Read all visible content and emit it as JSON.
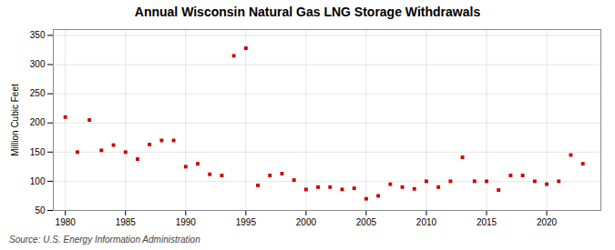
{
  "chart_data": {
    "type": "scatter",
    "title": "Annual Wisconsin Natural Gas LNG Storage Withdrawals",
    "ylabel": "Million Cubic Feet",
    "source": "Source: U.S. Energy Information Administration",
    "x": [
      1980,
      1981,
      1982,
      1983,
      1984,
      1985,
      1986,
      1987,
      1988,
      1989,
      1990,
      1991,
      1992,
      1993,
      1994,
      1995,
      1996,
      1997,
      1998,
      1999,
      2000,
      2001,
      2002,
      2003,
      2004,
      2005,
      2006,
      2007,
      2008,
      2009,
      2010,
      2011,
      2012,
      2013,
      2014,
      2015,
      2016,
      2017,
      2018,
      2019,
      2020,
      2021,
      2022,
      2023
    ],
    "values": [
      210,
      150,
      205,
      153,
      162,
      150,
      138,
      163,
      170,
      170,
      125,
      130,
      112,
      110,
      315,
      328,
      93,
      110,
      113,
      102,
      86,
      90,
      90,
      86,
      88,
      70,
      75,
      95,
      90,
      87,
      100,
      90,
      100,
      141,
      100,
      100,
      85,
      110,
      110,
      100,
      95,
      100,
      145,
      130
    ],
    "color": "#cc0000",
    "marker": "square",
    "xlim": [
      1979,
      2024.5
    ],
    "ylim": [
      50,
      360
    ],
    "xticks": [
      1980,
      1985,
      1990,
      1995,
      2000,
      2005,
      2010,
      2015,
      2020
    ],
    "yticks": [
      50,
      100,
      150,
      200,
      250,
      300,
      350
    ],
    "grid": true
  }
}
